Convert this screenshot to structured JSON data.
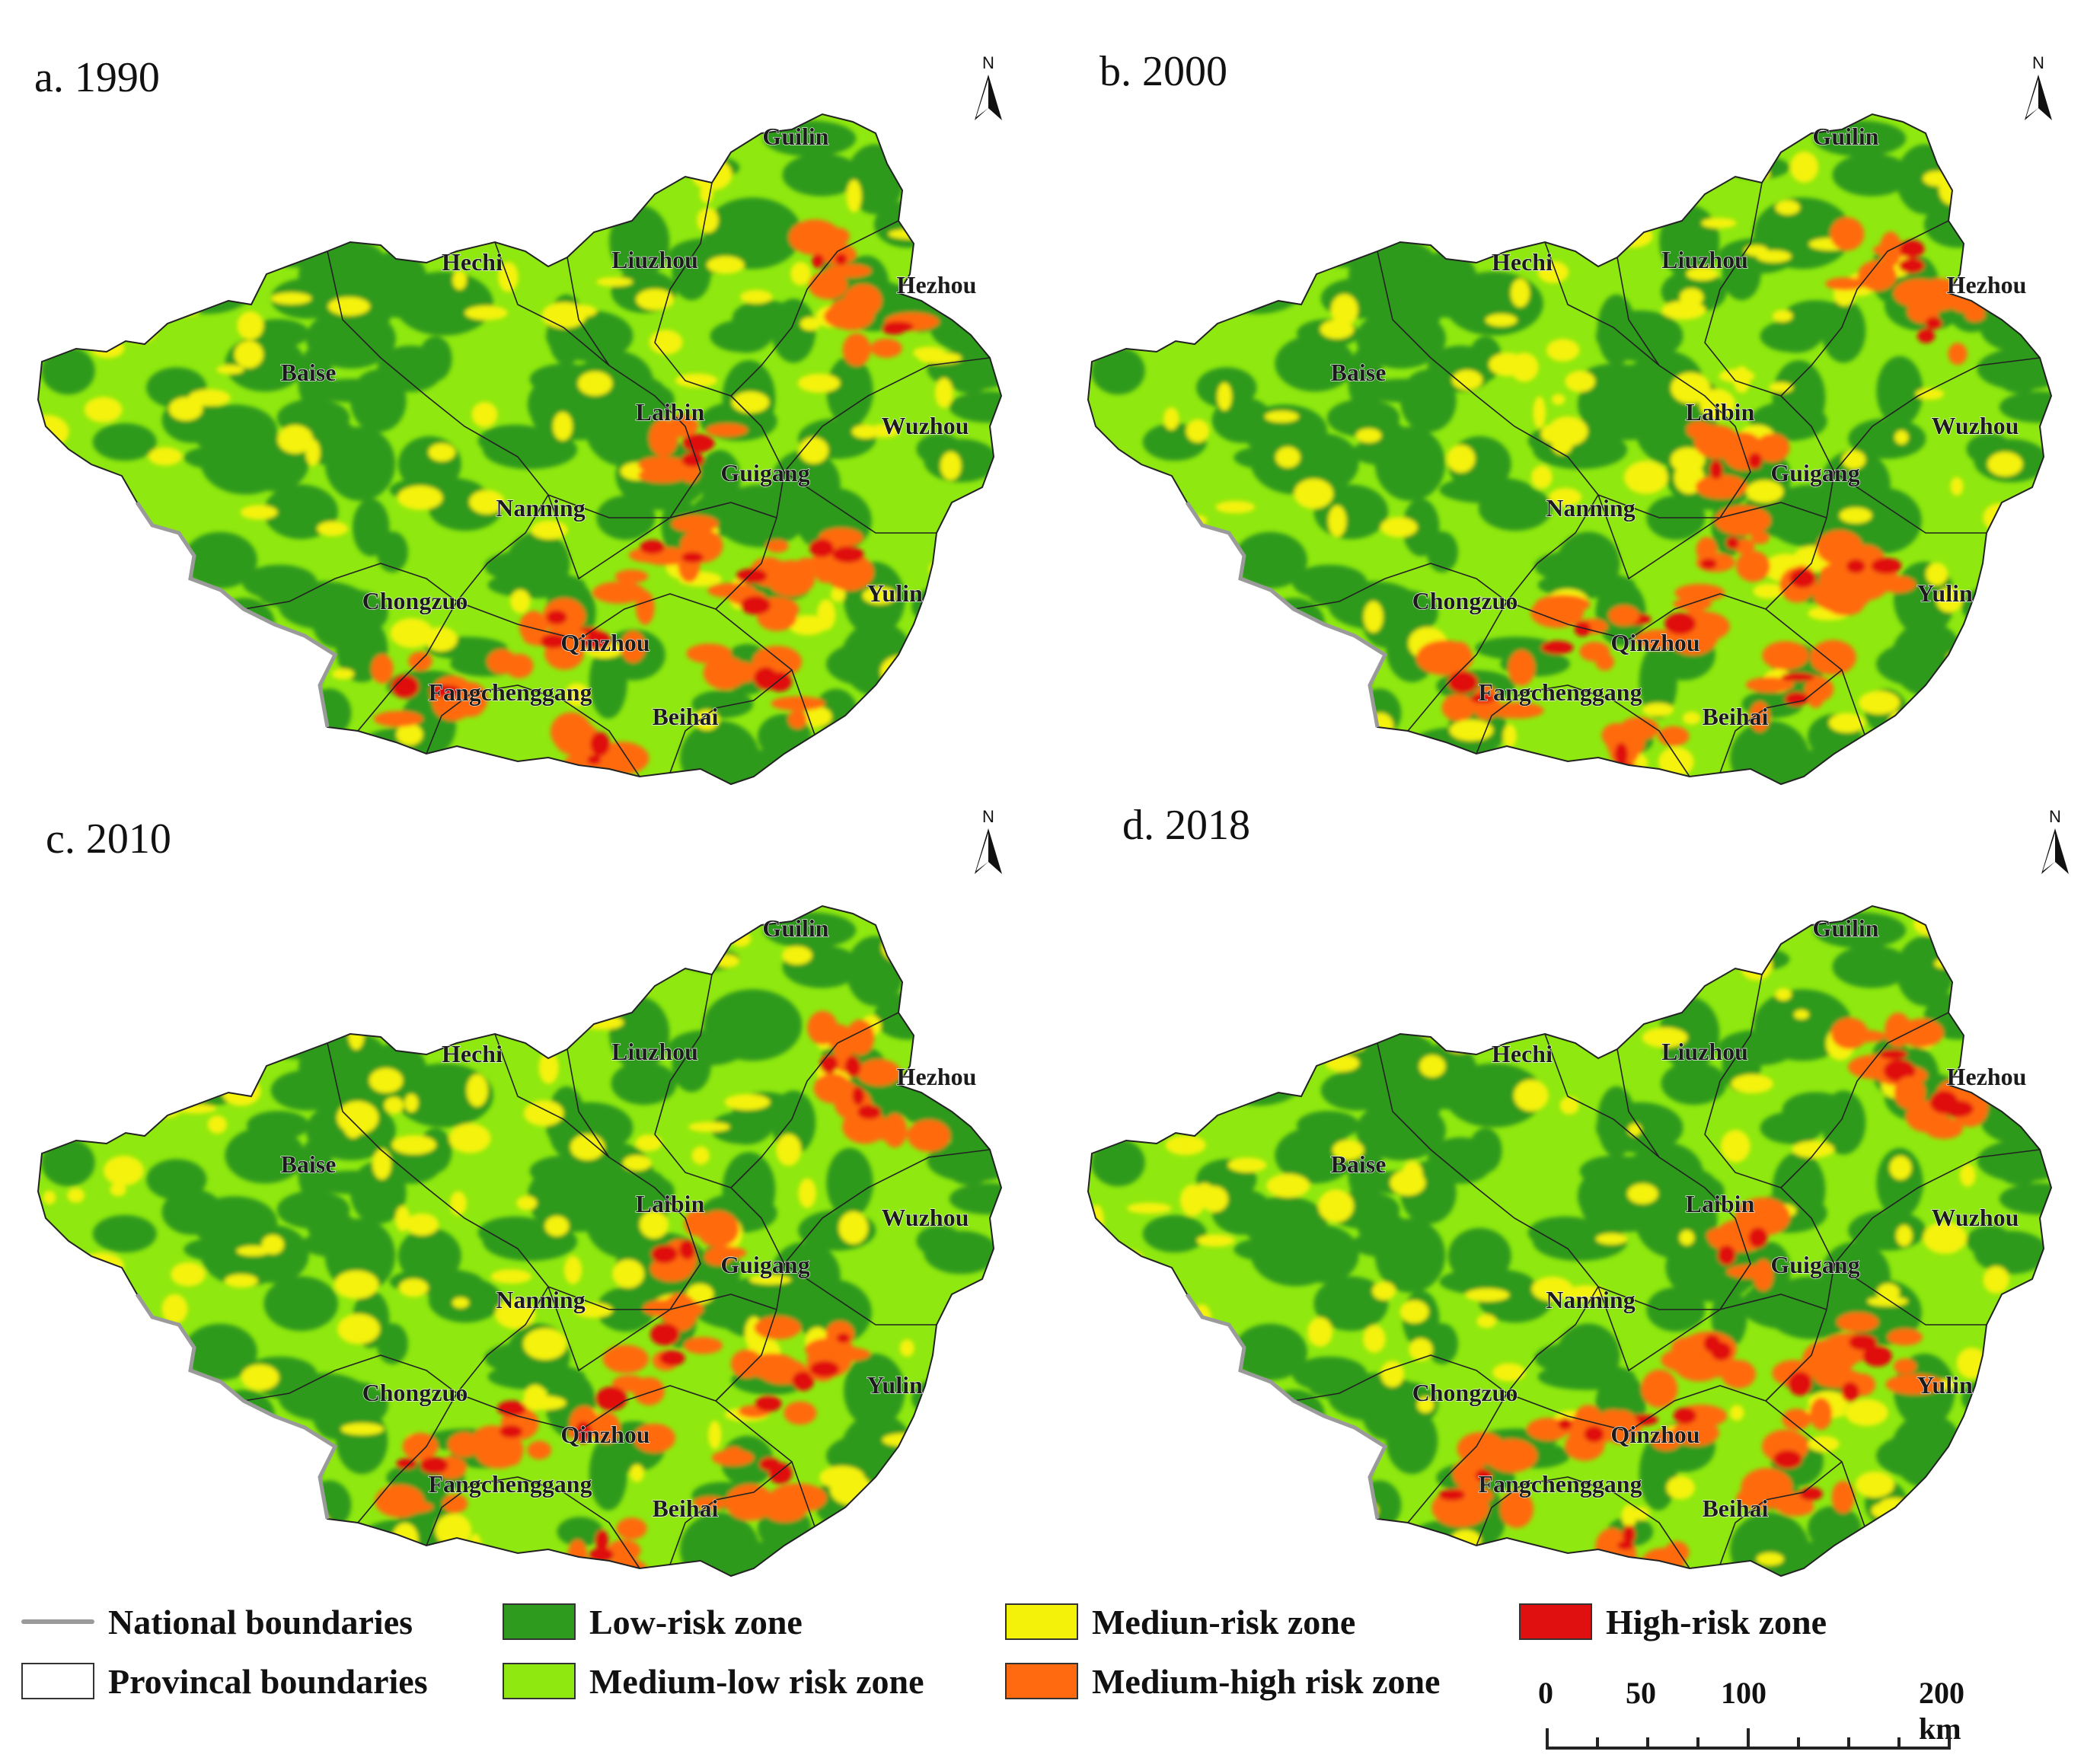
{
  "figure": {
    "panels": [
      {
        "title": "a. 1990",
        "id": "1990"
      },
      {
        "title": "b. 2000",
        "id": "2000"
      },
      {
        "title": "c. 2010",
        "id": "2010"
      },
      {
        "title": "d. 2018",
        "id": "2018"
      }
    ],
    "north_letter": "N",
    "cities": [
      "Guilin",
      "Hechi",
      "Liuzhou",
      "Hezhou",
      "Baise",
      "Laibin",
      "Wuzhou",
      "Guigang",
      "Nanning",
      "Chongzuo",
      "Yulin",
      "Qinzhou",
      "Fangchenggang",
      "Beihai"
    ],
    "colors": {
      "low": "#2e9a1e",
      "medium_low": "#8fe80f",
      "medium": "#f5f20a",
      "medium_high": "#ff6a10",
      "high": "#e01010",
      "national_boundary": "#9a9a9a",
      "provincial_boundary": "#222222"
    }
  },
  "legend": {
    "national_boundaries": "National boundaries",
    "provincial_boundaries": "Provincal boundaries",
    "low_risk": "Low-risk zone",
    "medium_low_risk": "Medium-low risk zone",
    "medium_risk": "Mediun-risk zone",
    "medium_high_risk": "Medium-high risk zone",
    "high_risk": "High-risk zone"
  },
  "scale": {
    "ticks": [
      "0",
      "50",
      "100",
      "200 km"
    ]
  }
}
